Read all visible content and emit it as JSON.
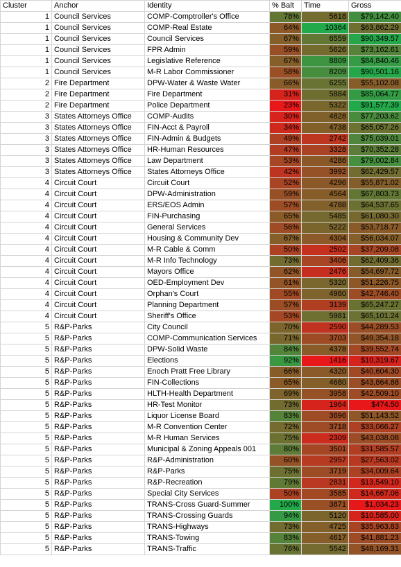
{
  "sheet": {
    "headers": [
      "Cluster",
      "Anchor",
      "Identity",
      "% Balt",
      "Time",
      "Gross"
    ],
    "scale_colors": {
      "low": "#e8171a",
      "mid": "#8a5a28",
      "high": "#22a94a"
    },
    "rows": [
      {
        "cluster": "1",
        "anchor": "Council Services",
        "identity": "COMP-Comptroller's Office",
        "pct": "78%",
        "pct_value": 0.78,
        "time": "5618",
        "time_value": 5618,
        "gross": "$79,142.40",
        "gross_value": 79142.4
      },
      {
        "cluster": "1",
        "anchor": "Council Services",
        "identity": "COMP-Real Estate",
        "pct": "64%",
        "pct_value": 0.64,
        "time": "10364",
        "time_value": 10364,
        "gross": "$63,862.29",
        "gross_value": 63862.29
      },
      {
        "cluster": "1",
        "anchor": "Council Services",
        "identity": "Council Services",
        "pct": "67%",
        "pct_value": 0.67,
        "time": "6559",
        "time_value": 6559,
        "gross": "$90,349.57",
        "gross_value": 90349.57
      },
      {
        "cluster": "1",
        "anchor": "Council Services",
        "identity": "FPR Admin",
        "pct": "59%",
        "pct_value": 0.59,
        "time": "5626",
        "time_value": 5626,
        "gross": "$73,162.61",
        "gross_value": 73162.61
      },
      {
        "cluster": "1",
        "anchor": "Council Services",
        "identity": "Legislative Reference",
        "pct": "67%",
        "pct_value": 0.67,
        "time": "8809",
        "time_value": 8809,
        "gross": "$84,840.46",
        "gross_value": 84840.46
      },
      {
        "cluster": "1",
        "anchor": "Council Services",
        "identity": "M-R Labor Commissioner",
        "pct": "58%",
        "pct_value": 0.58,
        "time": "8209",
        "time_value": 8209,
        "gross": "$90,501.16",
        "gross_value": 90501.16
      },
      {
        "cluster": "2",
        "anchor": "Fire Department",
        "identity": "DPW-Water & Waste Water",
        "pct": "66%",
        "pct_value": 0.66,
        "time": "6255",
        "time_value": 6255,
        "gross": "$55,102.08",
        "gross_value": 55102.08
      },
      {
        "cluster": "2",
        "anchor": "Fire Department",
        "identity": "Fire Department",
        "pct": "31%",
        "pct_value": 0.31,
        "time": "5884",
        "time_value": 5884,
        "gross": "$85,064.77",
        "gross_value": 85064.77
      },
      {
        "cluster": "2",
        "anchor": "Fire Department",
        "identity": "Police Department",
        "pct": "23%",
        "pct_value": 0.23,
        "time": "5322",
        "time_value": 5322,
        "gross": "$91,577.39",
        "gross_value": 91577.39
      },
      {
        "cluster": "3",
        "anchor": "States Attorneys Office",
        "identity": "COMP-Audits",
        "pct": "30%",
        "pct_value": 0.3,
        "time": "4828",
        "time_value": 4828,
        "gross": "$77,203.62",
        "gross_value": 77203.62
      },
      {
        "cluster": "3",
        "anchor": "States Attorneys Office",
        "identity": "FIN-Acct & Payroll",
        "pct": "34%",
        "pct_value": 0.34,
        "time": "4738",
        "time_value": 4738,
        "gross": "$65,057.26",
        "gross_value": 65057.26
      },
      {
        "cluster": "3",
        "anchor": "States Attorneys Office",
        "identity": "FIN-Admin & Budgets",
        "pct": "49%",
        "pct_value": 0.49,
        "time": "2742",
        "time_value": 2742,
        "gross": "$75,039.01",
        "gross_value": 75039.01
      },
      {
        "cluster": "3",
        "anchor": "States Attorneys Office",
        "identity": "HR-Human Resources",
        "pct": "47%",
        "pct_value": 0.47,
        "time": "3328",
        "time_value": 3328,
        "gross": "$70,352.28",
        "gross_value": 70352.28
      },
      {
        "cluster": "3",
        "anchor": "States Attorneys Office",
        "identity": "Law Department",
        "pct": "53%",
        "pct_value": 0.53,
        "time": "4286",
        "time_value": 4286,
        "gross": "$79,002.84",
        "gross_value": 79002.84
      },
      {
        "cluster": "3",
        "anchor": "States Attorneys Office",
        "identity": "States Attorneys Office",
        "pct": "42%",
        "pct_value": 0.42,
        "time": "3992",
        "time_value": 3992,
        "gross": "$62,429.57",
        "gross_value": 62429.57
      },
      {
        "cluster": "4",
        "anchor": "Circuit Court",
        "identity": "Circuit Court",
        "pct": "52%",
        "pct_value": 0.52,
        "time": "4296",
        "time_value": 4296,
        "gross": "$55,871.02",
        "gross_value": 55871.02
      },
      {
        "cluster": "4",
        "anchor": "Circuit Court",
        "identity": "DPW-Administration",
        "pct": "59%",
        "pct_value": 0.59,
        "time": "4564",
        "time_value": 4564,
        "gross": "$67,803.73",
        "gross_value": 67803.73
      },
      {
        "cluster": "4",
        "anchor": "Circuit Court",
        "identity": "ERS/EOS Admin",
        "pct": "57%",
        "pct_value": 0.57,
        "time": "4788",
        "time_value": 4788,
        "gross": "$64,537.65",
        "gross_value": 64537.65
      },
      {
        "cluster": "4",
        "anchor": "Circuit Court",
        "identity": "FIN-Purchasing",
        "pct": "65%",
        "pct_value": 0.65,
        "time": "5485",
        "time_value": 5485,
        "gross": "$61,080.30",
        "gross_value": 61080.3
      },
      {
        "cluster": "4",
        "anchor": "Circuit Court",
        "identity": "General Services",
        "pct": "56%",
        "pct_value": 0.56,
        "time": "5222",
        "time_value": 5222,
        "gross": "$53,718.77",
        "gross_value": 53718.77
      },
      {
        "cluster": "4",
        "anchor": "Circuit Court",
        "identity": "Housing & Community Dev",
        "pct": "67%",
        "pct_value": 0.67,
        "time": "4304",
        "time_value": 4304,
        "gross": "$56,034.07",
        "gross_value": 56034.07
      },
      {
        "cluster": "4",
        "anchor": "Circuit Court",
        "identity": "M-R Cable & Comm",
        "pct": "50%",
        "pct_value": 0.5,
        "time": "2502",
        "time_value": 2502,
        "gross": "$37,209.08",
        "gross_value": 37209.08
      },
      {
        "cluster": "4",
        "anchor": "Circuit Court",
        "identity": "M-R Info Technology",
        "pct": "73%",
        "pct_value": 0.73,
        "time": "3406",
        "time_value": 3406,
        "gross": "$62,409.36",
        "gross_value": 62409.36
      },
      {
        "cluster": "4",
        "anchor": "Circuit Court",
        "identity": "Mayors Office",
        "pct": "62%",
        "pct_value": 0.62,
        "time": "2476",
        "time_value": 2476,
        "gross": "$54,697.72",
        "gross_value": 54697.72
      },
      {
        "cluster": "4",
        "anchor": "Circuit Court",
        "identity": "OED-Employment Dev",
        "pct": "61%",
        "pct_value": 0.61,
        "time": "5320",
        "time_value": 5320,
        "gross": "$51,226.75",
        "gross_value": 51226.75
      },
      {
        "cluster": "4",
        "anchor": "Circuit Court",
        "identity": "Orphan's Court",
        "pct": "55%",
        "pct_value": 0.55,
        "time": "4980",
        "time_value": 4980,
        "gross": "$42,746.40",
        "gross_value": 42746.4
      },
      {
        "cluster": "4",
        "anchor": "Circuit Court",
        "identity": "Planning Department",
        "pct": "57%",
        "pct_value": 0.57,
        "time": "3139",
        "time_value": 3139,
        "gross": "$65,247.27",
        "gross_value": 65247.27
      },
      {
        "cluster": "4",
        "anchor": "Circuit Court",
        "identity": "Sheriff's Office",
        "pct": "53%",
        "pct_value": 0.53,
        "time": "5981",
        "time_value": 5981,
        "gross": "$65,101.24",
        "gross_value": 65101.24
      },
      {
        "cluster": "5",
        "anchor": "R&P-Parks",
        "identity": "City Council",
        "pct": "70%",
        "pct_value": 0.7,
        "time": "2590",
        "time_value": 2590,
        "gross": "$44,289.53",
        "gross_value": 44289.53
      },
      {
        "cluster": "5",
        "anchor": "R&P-Parks",
        "identity": "COMP-Communication Services",
        "pct": "71%",
        "pct_value": 0.71,
        "time": "3703",
        "time_value": 3703,
        "gross": "$49,354.18",
        "gross_value": 49354.18
      },
      {
        "cluster": "5",
        "anchor": "R&P-Parks",
        "identity": "DPW-Solid Waste",
        "pct": "84%",
        "pct_value": 0.84,
        "time": "4378",
        "time_value": 4378,
        "gross": "$39,552.74",
        "gross_value": 39552.74
      },
      {
        "cluster": "5",
        "anchor": "R&P-Parks",
        "identity": "Elections",
        "pct": "92%",
        "pct_value": 0.92,
        "time": "1416",
        "time_value": 1416,
        "gross": "$10,319.67",
        "gross_value": 10319.67
      },
      {
        "cluster": "5",
        "anchor": "R&P-Parks",
        "identity": "Enoch Pratt Free Library",
        "pct": "66%",
        "pct_value": 0.66,
        "time": "4320",
        "time_value": 4320,
        "gross": "$40,604.30",
        "gross_value": 40604.3
      },
      {
        "cluster": "5",
        "anchor": "R&P-Parks",
        "identity": "FIN-Collections",
        "pct": "65%",
        "pct_value": 0.65,
        "time": "4680",
        "time_value": 4680,
        "gross": "$43,864.88",
        "gross_value": 43864.88
      },
      {
        "cluster": "5",
        "anchor": "R&P-Parks",
        "identity": "HLTH-Health Department",
        "pct": "69%",
        "pct_value": 0.69,
        "time": "3958",
        "time_value": 3958,
        "gross": "$42,509.10",
        "gross_value": 42509.1
      },
      {
        "cluster": "5",
        "anchor": "R&P-Parks",
        "identity": "HR-Test Monitor",
        "pct": "73%",
        "pct_value": 0.73,
        "time": "1964",
        "time_value": 1964,
        "gross": "$474.50",
        "gross_value": 474.5
      },
      {
        "cluster": "5",
        "anchor": "R&P-Parks",
        "identity": "Liquor License Board",
        "pct": "83%",
        "pct_value": 0.83,
        "time": "3696",
        "time_value": 3696,
        "gross": "$51,143.52",
        "gross_value": 51143.52
      },
      {
        "cluster": "5",
        "anchor": "R&P-Parks",
        "identity": "M-R Convention Center",
        "pct": "72%",
        "pct_value": 0.72,
        "time": "3718",
        "time_value": 3718,
        "gross": "$33,066.27",
        "gross_value": 33066.27
      },
      {
        "cluster": "5",
        "anchor": "R&P-Parks",
        "identity": "M-R Human Services",
        "pct": "75%",
        "pct_value": 0.75,
        "time": "2309",
        "time_value": 2309,
        "gross": "$43,038.08",
        "gross_value": 43038.08
      },
      {
        "cluster": "5",
        "anchor": "R&P-Parks",
        "identity": "Municipal & Zoning Appeals 001",
        "pct": "80%",
        "pct_value": 0.8,
        "time": "3501",
        "time_value": 3501,
        "gross": "$31,585.57",
        "gross_value": 31585.57
      },
      {
        "cluster": "5",
        "anchor": "R&P-Parks",
        "identity": "R&P-Administration",
        "pct": "60%",
        "pct_value": 0.6,
        "time": "2957",
        "time_value": 2957,
        "gross": "$27,563.02",
        "gross_value": 27563.02
      },
      {
        "cluster": "5",
        "anchor": "R&P-Parks",
        "identity": "R&P-Parks",
        "pct": "75%",
        "pct_value": 0.75,
        "time": "3719",
        "time_value": 3719,
        "gross": "$34,009.64",
        "gross_value": 34009.64
      },
      {
        "cluster": "5",
        "anchor": "R&P-Parks",
        "identity": "R&P-Recreation",
        "pct": "79%",
        "pct_value": 0.79,
        "time": "2831",
        "time_value": 2831,
        "gross": "$13,549.10",
        "gross_value": 13549.1
      },
      {
        "cluster": "5",
        "anchor": "R&P-Parks",
        "identity": "Special City Services",
        "pct": "50%",
        "pct_value": 0.5,
        "time": "3585",
        "time_value": 3585,
        "gross": "$14,667.06",
        "gross_value": 14667.06
      },
      {
        "cluster": "5",
        "anchor": "R&P-Parks",
        "identity": "TRANS-Cross Guard-Summer",
        "pct": "100%",
        "pct_value": 1.0,
        "time": "3871",
        "time_value": 3871,
        "gross": "$1,034.23",
        "gross_value": 1034.23
      },
      {
        "cluster": "5",
        "anchor": "R&P-Parks",
        "identity": "TRANS-Crossing Guards",
        "pct": "94%",
        "pct_value": 0.94,
        "time": "5120",
        "time_value": 5120,
        "gross": "$10,585.00",
        "gross_value": 10585.0
      },
      {
        "cluster": "5",
        "anchor": "R&P-Parks",
        "identity": "TRANS-Highways",
        "pct": "73%",
        "pct_value": 0.73,
        "time": "4725",
        "time_value": 4725,
        "gross": "$35,963.83",
        "gross_value": 35963.83
      },
      {
        "cluster": "5",
        "anchor": "R&P-Parks",
        "identity": "TRANS-Towing",
        "pct": "83%",
        "pct_value": 0.83,
        "time": "4617",
        "time_value": 4617,
        "gross": "$41,881.23",
        "gross_value": 41881.23
      },
      {
        "cluster": "5",
        "anchor": "R&P-Parks",
        "identity": "TRANS-Traffic",
        "pct": "76%",
        "pct_value": 0.76,
        "time": "5542",
        "time_value": 5542,
        "gross": "$48,169.31",
        "gross_value": 48169.31
      }
    ]
  }
}
